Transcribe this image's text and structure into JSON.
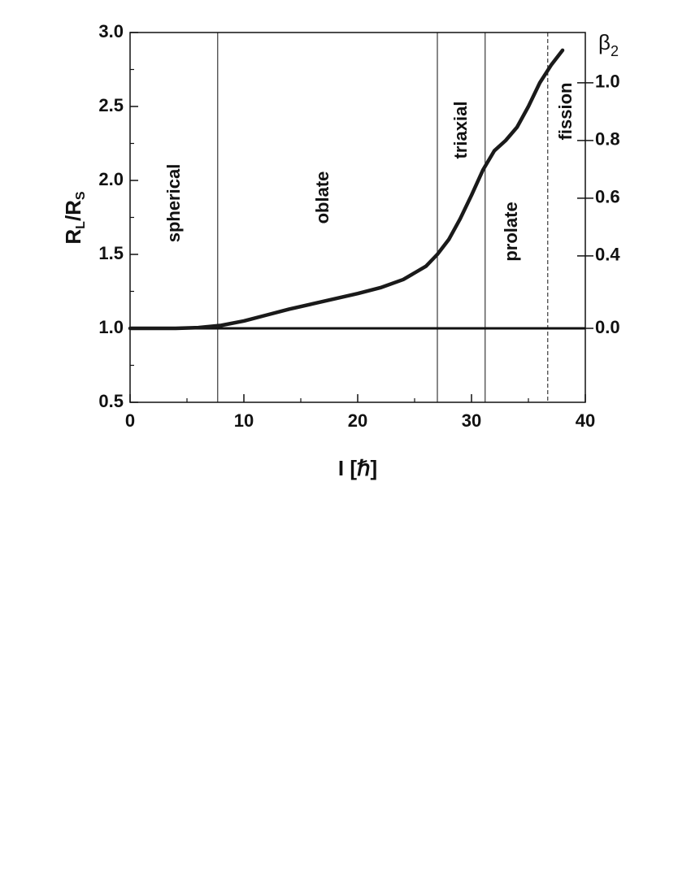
{
  "chart_data": {
    "type": "line",
    "xlabel": "I [ℏ]",
    "ylabel": [
      "R",
      "L",
      "/R",
      "S"
    ],
    "y2label": [
      "β",
      "2"
    ],
    "xlim": [
      0,
      40
    ],
    "ylim": [
      0.5,
      3.0
    ],
    "xticks": [
      0,
      10,
      20,
      30,
      40
    ],
    "yticks": [
      {
        "value": 0.5,
        "label": "0.5"
      },
      {
        "value": 1.0,
        "label": "1.0"
      },
      {
        "value": 1.5,
        "label": "1.5"
      },
      {
        "value": 2.0,
        "label": "2.0"
      },
      {
        "value": 2.5,
        "label": "2.5"
      },
      {
        "value": 3.0,
        "label": "3.0"
      }
    ],
    "y2ticks": [
      {
        "value": 0.0,
        "label": "0.0",
        "at": 1.0
      },
      {
        "value": 0.4,
        "label": "0.4",
        "at": 1.49
      },
      {
        "value": 0.6,
        "label": "0.6",
        "at": 1.88
      },
      {
        "value": 0.8,
        "label": "0.8",
        "at": 2.27
      },
      {
        "value": 1.0,
        "label": "1.0",
        "at": 2.66
      }
    ],
    "hline": 1.0,
    "vlines": [
      {
        "x": 7.7,
        "style": "solid"
      },
      {
        "x": 27,
        "style": "solid"
      },
      {
        "x": 31.2,
        "style": "solid"
      },
      {
        "x": 36.7,
        "style": "dashed"
      }
    ],
    "regions": [
      "spherical",
      "oblate",
      "triaxial",
      "prolate",
      "fission"
    ],
    "series": [
      {
        "color": "#1a1a1a",
        "x": [
          0,
          4,
          6,
          8,
          10,
          12,
          14,
          16,
          18,
          20,
          22,
          24,
          26,
          27,
          28,
          29,
          30,
          31,
          32,
          33,
          34,
          35,
          36,
          37,
          38
        ],
        "values": [
          1.0,
          1.0,
          1.005,
          1.02,
          1.05,
          1.09,
          1.13,
          1.165,
          1.2,
          1.235,
          1.275,
          1.33,
          1.42,
          1.5,
          1.6,
          1.74,
          1.9,
          2.07,
          2.2,
          2.27,
          2.36,
          2.5,
          2.66,
          2.78,
          2.88
        ]
      }
    ]
  }
}
